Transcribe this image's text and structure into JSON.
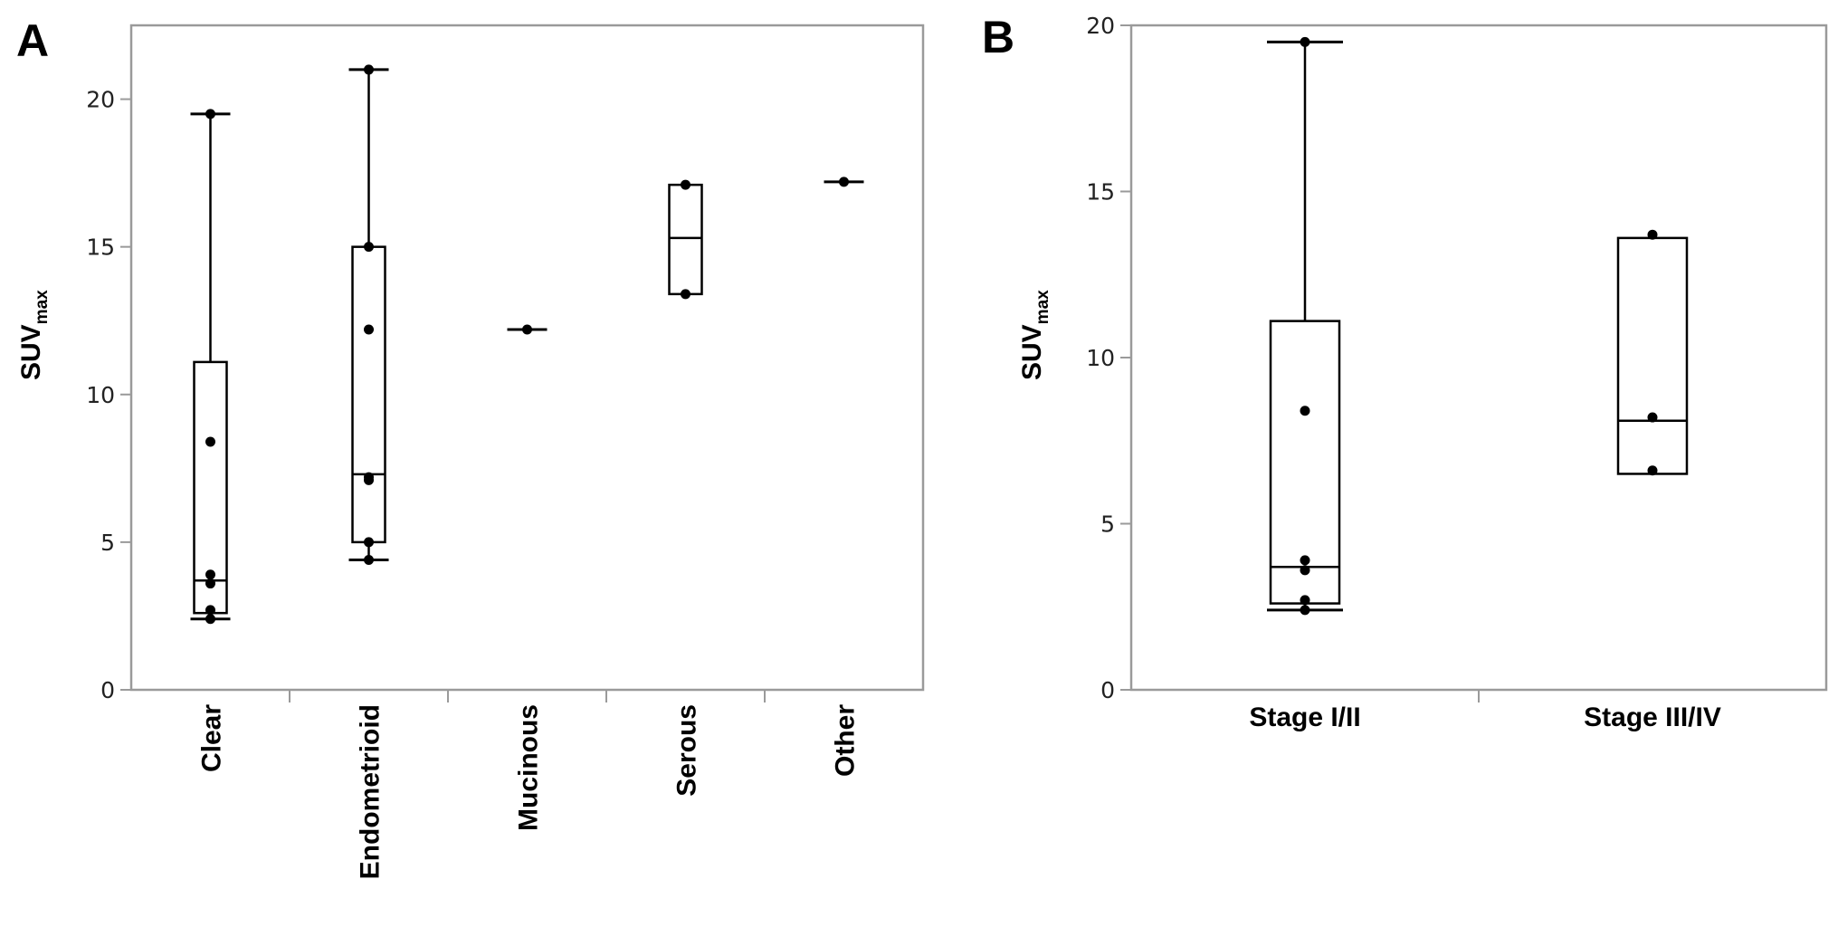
{
  "chart_data": [
    {
      "panel": "A",
      "type": "box",
      "ylabel": "SUV",
      "ylabel_subscript": "max",
      "ylim": [
        0,
        22.5
      ],
      "yticks": [
        0,
        5,
        10,
        15,
        20
      ],
      "categories": [
        "Clear",
        "Endometrioid",
        "Mucinous",
        "Serous",
        "Other"
      ],
      "boxes": [
        {
          "category": "Clear",
          "whisker_low": 2.4,
          "q1": 2.6,
          "median": 3.7,
          "q3": 11.1,
          "whisker_high": 19.5,
          "points": [
            19.5,
            8.4,
            3.9,
            3.6,
            2.7,
            2.4
          ]
        },
        {
          "category": "Endometrioid",
          "whisker_low": 4.4,
          "q1": 5.0,
          "median": 7.3,
          "q3": 15.0,
          "whisker_high": 21.0,
          "points": [
            21.0,
            15.0,
            12.2,
            7.2,
            7.1,
            5.0,
            4.4
          ]
        },
        {
          "category": "Mucinous",
          "whisker_low": 12.2,
          "q1": 12.2,
          "median": 12.2,
          "q3": 12.2,
          "whisker_high": 12.2,
          "points": [
            12.2
          ]
        },
        {
          "category": "Serous",
          "whisker_low": 13.4,
          "q1": 13.4,
          "median": 15.3,
          "q3": 17.1,
          "whisker_high": 17.1,
          "points": [
            17.1,
            13.4
          ]
        },
        {
          "category": "Other",
          "whisker_low": 17.2,
          "q1": 17.2,
          "median": 17.2,
          "q3": 17.2,
          "whisker_high": 17.2,
          "points": [
            17.2
          ]
        }
      ],
      "grid": false
    },
    {
      "panel": "B",
      "type": "box",
      "ylabel": "SUV",
      "ylabel_subscript": "max",
      "ylim": [
        0,
        20
      ],
      "yticks": [
        0,
        5,
        10,
        15,
        20
      ],
      "categories": [
        "Stage I/II",
        "Stage III/IV"
      ],
      "boxes": [
        {
          "category": "Stage I/II",
          "whisker_low": 2.4,
          "q1": 2.6,
          "median": 3.7,
          "q3": 11.1,
          "whisker_high": 19.5,
          "points": [
            19.5,
            8.4,
            3.9,
            3.6,
            2.7,
            2.4
          ]
        },
        {
          "category": "Stage III/IV",
          "whisker_low": 6.5,
          "q1": 6.5,
          "median": 8.1,
          "q3": 13.6,
          "whisker_high": 13.6,
          "points": [
            13.7,
            8.2,
            6.6
          ]
        }
      ],
      "grid": false
    }
  ]
}
